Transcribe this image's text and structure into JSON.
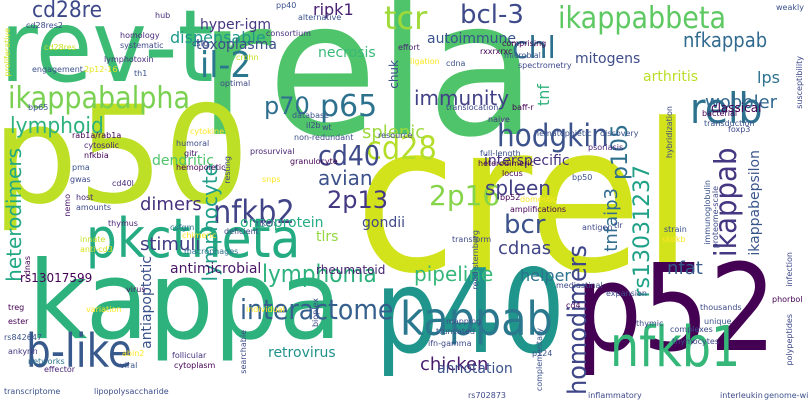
{
  "words": [
    {
      "text": "rela",
      "color": "#4fc46a"
    },
    {
      "text": "crel",
      "color": "#d2e21b"
    },
    {
      "text": "p50",
      "color": "#bddf26"
    },
    {
      "text": "rev-t",
      "color": "#3cbb75"
    },
    {
      "text": "kappa",
      "color": "#2db27d"
    },
    {
      "text": "p40",
      "color": "#1f958b"
    },
    {
      "text": "p52",
      "color": "#440154"
    },
    {
      "text": "pkctheta",
      "color": "#25ab82"
    },
    {
      "text": "nfkb1",
      "color": "#35b779"
    },
    {
      "text": "kappab",
      "color": "#2a788e"
    },
    {
      "text": "b-like",
      "color": "#38598c"
    },
    {
      "text": "relb",
      "color": "#2c728e"
    },
    {
      "text": "ikappabbeta",
      "color": "#5ec962"
    },
    {
      "text": "ikappabalpha",
      "color": "#7ad151"
    },
    {
      "text": "il-2",
      "color": "#2a788e"
    },
    {
      "text": "tcr",
      "color": "#9fda3a"
    },
    {
      "text": "chl",
      "color": "#2d708e"
    },
    {
      "text": "bcl-3",
      "color": "#3e4a89"
    },
    {
      "text": "hodgkin",
      "color": "#3b528b"
    },
    {
      "text": "p65",
      "color": "#2c728e"
    },
    {
      "text": "cd28",
      "color": "#b5de2b"
    },
    {
      "text": "cd40",
      "color": "#3e4a89"
    },
    {
      "text": "nfkb2",
      "color": "#414487"
    },
    {
      "text": "ikappab",
      "color": "#453781"
    },
    {
      "text": "p70",
      "color": "#2e6e8e"
    },
    {
      "text": "interactome",
      "color": "#35608d"
    },
    {
      "text": "homodimers",
      "color": "#3f4788"
    },
    {
      "text": "2p16",
      "color": "#86d549"
    },
    {
      "text": "2p13",
      "color": "#453882"
    },
    {
      "text": "bcr",
      "color": "#3b528b"
    },
    {
      "text": "lymphoid",
      "color": "#2db27d"
    },
    {
      "text": "cd28re",
      "color": "#3e4989"
    },
    {
      "text": "wobbler",
      "color": "#31688e"
    },
    {
      "text": "nfkappab",
      "color": "#306a8e"
    },
    {
      "text": "immunity",
      "color": "#424186"
    },
    {
      "text": "p105",
      "color": "#2e6f8e"
    },
    {
      "text": "rs13031237",
      "color": "#1fa187"
    },
    {
      "text": "lymphoma",
      "color": "#2db27d"
    },
    {
      "text": "heterodimers",
      "color": "#22a884"
    },
    {
      "text": "pipeline",
      "color": "#35b779"
    },
    {
      "text": "chicken",
      "color": "#481b6d"
    },
    {
      "text": "avian",
      "color": "#3b528b"
    },
    {
      "text": "dimers",
      "color": "#46327e"
    },
    {
      "text": "stimuli",
      "color": "#433e85"
    },
    {
      "text": "spleen",
      "color": "#423f85"
    },
    {
      "text": "cdnas",
      "color": "#404588"
    },
    {
      "text": "nfat",
      "color": "#375a8c"
    },
    {
      "text": "lymphocyte",
      "color": "#1f9e89"
    },
    {
      "text": "tnfaip3",
      "color": "#2f6c8e"
    },
    {
      "text": "ikappabepsilon",
      "color": "#39568c"
    },
    {
      "text": "splenic",
      "color": "#9bd93c"
    },
    {
      "text": "dispensable",
      "color": "#1f988b"
    },
    {
      "text": "toxoplasma",
      "color": "#3d4e8a"
    },
    {
      "text": "hyper-igm",
      "color": "#453781"
    },
    {
      "text": "ripk1",
      "color": "#482071"
    },
    {
      "text": "autoimmune",
      "color": "#3a548c"
    },
    {
      "text": "mitogens",
      "color": "#3e4c8a"
    },
    {
      "text": "arthritis",
      "color": "#bade28"
    },
    {
      "text": "lps",
      "color": "#2c718e"
    },
    {
      "text": "tnf",
      "color": "#2eb37c"
    },
    {
      "text": "necrosis",
      "color": "#38b977"
    },
    {
      "text": "dendritic",
      "color": "#4fc46a"
    },
    {
      "text": "oncoprotein",
      "color": "#25ac82"
    },
    {
      "text": "tlrs",
      "color": "#93d741"
    },
    {
      "text": "interspecific",
      "color": "#46337f"
    },
    {
      "text": "helper",
      "color": "#2c738e"
    },
    {
      "text": "annotation",
      "color": "#3b528b"
    },
    {
      "text": "antimicrobial",
      "color": "#481769"
    },
    {
      "text": "antiapoptotic",
      "color": "#3b518b"
    },
    {
      "text": "retrovirus",
      "color": "#20928c"
    },
    {
      "text": "gondii",
      "color": "#3f4889"
    },
    {
      "text": "classical",
      "color": "#440154"
    },
    {
      "text": "rs13017599",
      "color": "#440154"
    },
    {
      "text": "rheumatoid",
      "color": "#482374"
    },
    {
      "text": "chuk",
      "color": "#3b528b"
    },
    {
      "text": "hub",
      "color": "#472c7a"
    },
    {
      "text": "homology",
      "color": "#482979"
    },
    {
      "text": "systematic",
      "color": "#3e4a89"
    },
    {
      "text": "cd28res",
      "color": "#c8e020"
    },
    {
      "text": "proliferative",
      "color": "#d8e219"
    },
    {
      "text": "lymphotoxin",
      "color": "#472d7b"
    },
    {
      "text": "engagement",
      "color": "#3b528b"
    },
    {
      "text": "2p12-16",
      "color": "#e5e419"
    },
    {
      "text": "csfg",
      "color": "#3e4c8a"
    },
    {
      "text": "crohn",
      "color": "#c2df23"
    },
    {
      "text": "optimal",
      "color": "#3e4989"
    },
    {
      "text": "th1",
      "color": "#3b528b"
    },
    {
      "text": "bp65",
      "color": "#3b528b"
    },
    {
      "text": "rab1a/rab1a",
      "color": "#440154"
    },
    {
      "text": "cytosolic",
      "color": "#481f70"
    },
    {
      "text": "nfkbia",
      "color": "#440154"
    },
    {
      "text": "humoral",
      "color": "#3e4a89"
    },
    {
      "text": "cytokine",
      "color": "#fde725"
    },
    {
      "text": "gitr",
      "color": "#481a6c"
    },
    {
      "text": "hemopoietic",
      "color": "#440154"
    },
    {
      "text": "pma",
      "color": "#3b528b"
    },
    {
      "text": "gwas",
      "color": "#3e4989"
    },
    {
      "text": "nemo",
      "color": "#481467"
    },
    {
      "text": "host",
      "color": "#482878"
    },
    {
      "text": "amounts",
      "color": "#3e4989"
    },
    {
      "text": "cd40l",
      "color": "#472c7a"
    },
    {
      "text": "thymus",
      "color": "#482475"
    },
    {
      "text": "csfgm",
      "color": "#2d708e"
    },
    {
      "text": "innate",
      "color": "#c2df23"
    },
    {
      "text": "anti-cd3",
      "color": "#d8e219"
    },
    {
      "text": "dnas",
      "color": "#440154"
    },
    {
      "text": "treg",
      "color": "#440154"
    },
    {
      "text": "ester",
      "color": "#440154"
    },
    {
      "text": "rs842647",
      "color": "#3b528b"
    },
    {
      "text": "ankyrin",
      "color": "#453882"
    },
    {
      "text": "networks",
      "color": "#2c728e"
    },
    {
      "text": "effector",
      "color": "#482475"
    },
    {
      "text": "transcriptome",
      "color": "#3b528b"
    },
    {
      "text": "lipopolysaccharide",
      "color": "#3e4c8a"
    },
    {
      "text": "abin2",
      "color": "#fde725"
    },
    {
      "text": "viral",
      "color": "#3b528b"
    },
    {
      "text": "variation",
      "color": "#fde725"
    },
    {
      "text": "virus",
      "color": "#48186a"
    },
    {
      "text": "chimeric",
      "color": "#fde725"
    },
    {
      "text": "macrophages",
      "color": "#2c728e"
    },
    {
      "text": "individual",
      "color": "#fde725"
    },
    {
      "text": "follicular",
      "color": "#46327e"
    },
    {
      "text": "cytoplasm",
      "color": "#440154"
    },
    {
      "text": "searchable",
      "color": "#3e4989"
    },
    {
      "text": "bioplex",
      "color": "#3e4989"
    },
    {
      "text": "riken",
      "color": "#3b528b"
    },
    {
      "text": "deficient",
      "color": "#3e4989"
    },
    {
      "text": "snps",
      "color": "#fde725"
    },
    {
      "text": "resting",
      "color": "#3e4989"
    },
    {
      "text": "prosurvival",
      "color": "#482475"
    },
    {
      "text": "granulocyte",
      "color": "#440154"
    },
    {
      "text": "il2b",
      "color": "#3e4989"
    },
    {
      "text": "wt",
      "color": "#3e4989"
    },
    {
      "text": "non-redundant",
      "color": "#3e4c8a"
    },
    {
      "text": "database",
      "color": "#3b528b"
    },
    {
      "text": "cdna",
      "color": "#3b528b"
    },
    {
      "text": "comprising",
      "color": "#440154"
    },
    {
      "text": "microbial",
      "color": "#3b528b"
    },
    {
      "text": "spectrometry",
      "color": "#3e4989"
    },
    {
      "text": "rxxrxrxc",
      "color": "#440154"
    },
    {
      "text": "alternative",
      "color": "#3b528b"
    },
    {
      "text": "consortium",
      "color": "#46327e"
    },
    {
      "text": "effort",
      "color": "#482475"
    },
    {
      "text": "ligation",
      "color": "#fde725"
    },
    {
      "text": "pp40",
      "color": "#3b528b"
    },
    {
      "text": "translocation",
      "color": "#3e4989"
    },
    {
      "text": "baff-r",
      "color": "#440154"
    },
    {
      "text": "naive",
      "color": "#46327e"
    },
    {
      "text": "resource",
      "color": "#3e4989"
    },
    {
      "text": "discovery",
      "color": "#3b528b"
    },
    {
      "text": "psoriasis",
      "color": "#482878"
    },
    {
      "text": "full-length",
      "color": "#3b528b"
    },
    {
      "text": "heterodimeric",
      "color": "#440154"
    },
    {
      "text": "hematopoietic",
      "color": "#3b528b"
    },
    {
      "text": "locus",
      "color": "#440154"
    },
    {
      "text": "bp50",
      "color": "#3b528b"
    },
    {
      "text": "tlr",
      "color": "#3e4989"
    },
    {
      "text": "domestic",
      "color": "#fde725"
    },
    {
      "text": "bp52",
      "color": "#440154"
    },
    {
      "text": "amplifications",
      "color": "#440154"
    },
    {
      "text": "antigen",
      "color": "#3e4989"
    },
    {
      "text": "transform",
      "color": "#3e4989"
    },
    {
      "text": "reed-sternberg",
      "color": "#3b528b"
    },
    {
      "text": "mediastinal",
      "color": "#3e4989"
    },
    {
      "text": "expansion",
      "color": "#3e4989"
    },
    {
      "text": "thymic",
      "color": "#3e4989"
    },
    {
      "text": "complexes",
      "color": "#3e4989"
    },
    {
      "text": "thymocytes",
      "color": "#3e4989"
    },
    {
      "text": "thousands",
      "color": "#3e4989"
    },
    {
      "text": "mapping",
      "color": "#3e4989"
    },
    {
      "text": "truncated",
      "color": "#3b528b"
    },
    {
      "text": "ifn-gamma",
      "color": "#3e4989"
    },
    {
      "text": "rs702873",
      "color": "#3e4989"
    },
    {
      "text": "complementary",
      "color": "#3b528b"
    },
    {
      "text": "p124",
      "color": "#3b528b"
    },
    {
      "text": "inflammatory",
      "color": "#3e4989"
    },
    {
      "text": "cd4",
      "color": "#440154"
    },
    {
      "text": "unique",
      "color": "#3b528b"
    },
    {
      "text": "interleukin",
      "color": "#3e4989"
    },
    {
      "text": "genome-wide",
      "color": "#3b528b"
    },
    {
      "text": "polypeptides",
      "color": "#3e4989"
    },
    {
      "text": "phorbol",
      "color": "#440154"
    },
    {
      "text": "infection",
      "color": "#3e4989"
    },
    {
      "text": "immunoglobulin",
      "color": "#3b528b"
    },
    {
      "text": "foxp3",
      "color": "#3e4989"
    },
    {
      "text": "bacterial",
      "color": "#440154"
    },
    {
      "text": "transduction",
      "color": "#3b528b"
    },
    {
      "text": "hybridization",
      "color": "#3e4989"
    },
    {
      "text": "skbkb",
      "color": "#fde725"
    },
    {
      "text": "proteome-scale",
      "color": "#3e4989"
    },
    {
      "text": "strain",
      "color": "#3b528b"
    },
    {
      "text": "susceptibility",
      "color": "#3e4989"
    },
    {
      "text": "weakly",
      "color": "#3b528b"
    },
    {
      "text": "cd28res2",
      "color": "#3e4989"
    }
  ]
}
